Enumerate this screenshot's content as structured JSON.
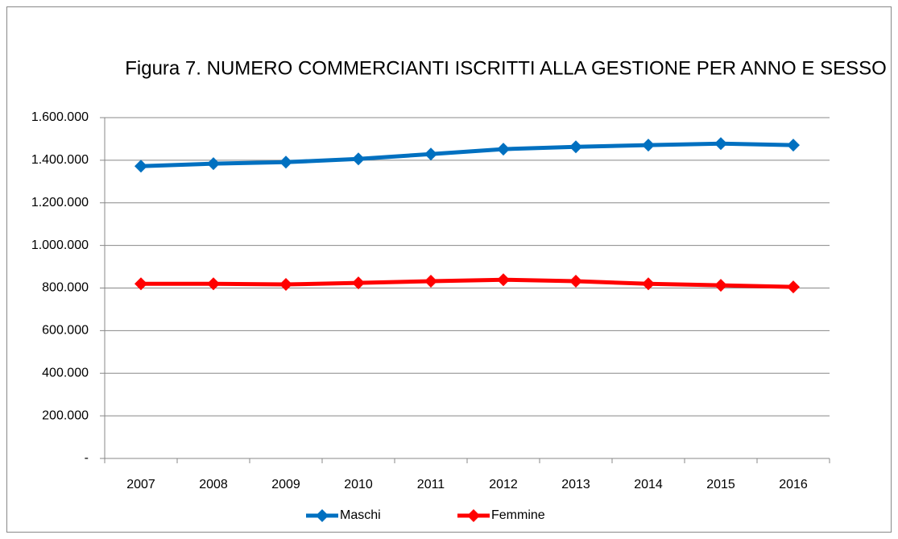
{
  "chart_data": {
    "type": "line",
    "title": "Figura 7. NUMERO COMMERCIANTI ISCRITTI ALLA GESTIONE PER ANNO E SESSO",
    "categories": [
      "2007",
      "2008",
      "2009",
      "2010",
      "2011",
      "2012",
      "2013",
      "2014",
      "2015",
      "2016"
    ],
    "series": [
      {
        "name": "Maschi",
        "color": "#0070c0",
        "values": [
          1372000,
          1384000,
          1391000,
          1406000,
          1429000,
          1452000,
          1463000,
          1471000,
          1478000,
          1471000
        ]
      },
      {
        "name": "Femmine",
        "color": "#ff0000",
        "values": [
          820000,
          820000,
          817000,
          824000,
          832000,
          839000,
          832000,
          820000,
          813000,
          805000
        ]
      }
    ],
    "ylim": [
      0,
      1600000
    ],
    "yticks": [
      {
        "value": 0,
        "label": "-"
      },
      {
        "value": 200000,
        "label": "200.000"
      },
      {
        "value": 400000,
        "label": "400.000"
      },
      {
        "value": 600000,
        "label": "600.000"
      },
      {
        "value": 800000,
        "label": "800.000"
      },
      {
        "value": 1000000,
        "label": "1.000.000"
      },
      {
        "value": 1200000,
        "label": "1.200.000"
      },
      {
        "value": 1400000,
        "label": "1.400.000"
      },
      {
        "value": 1600000,
        "label": "1.600.000"
      }
    ],
    "grid": true,
    "legend": "bottom"
  }
}
